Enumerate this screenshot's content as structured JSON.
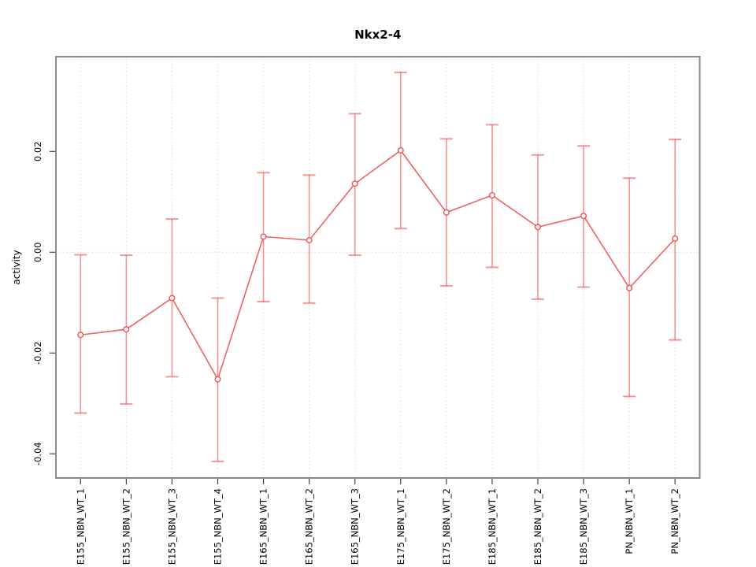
{
  "figure": {
    "background": "#ffffff"
  },
  "chart_data": {
    "type": "line",
    "title": "Nkx2-4",
    "xlabel": "",
    "ylabel": "activity",
    "legend_position": "none",
    "grid": {
      "vertical_dotted": true,
      "zero_line_dotted": true
    },
    "marker": "open-circle",
    "categories": [
      "E155_NBN_WT_1",
      "E155_NBN_WT_2",
      "E155_NBN_WT_3",
      "E155_NBN_WT_4",
      "E165_NBN_WT_1",
      "E165_NBN_WT_2",
      "E165_NBN_WT_3",
      "E175_NBN_WT_1",
      "E175_NBN_WT_2",
      "E185_NBN_WT_1",
      "E185_NBN_WT_2",
      "E185_NBN_WT_3",
      "PN_NBN_WT_1",
      "PN_NBN_WT_2"
    ],
    "series": [
      {
        "name": "activity",
        "values": [
          -0.0164,
          -0.0153,
          -0.0091,
          -0.0252,
          0.0031,
          0.0024,
          0.0136,
          0.0202,
          0.0079,
          0.0113,
          0.005,
          0.0072,
          -0.0071,
          0.0027
        ],
        "upper": [
          -0.0005,
          -0.0006,
          0.0066,
          -0.0091,
          0.0158,
          0.0153,
          0.0275,
          0.0357,
          0.0225,
          0.0253,
          0.0193,
          0.0211,
          0.0147,
          0.0224
        ],
        "lower": [
          -0.0319,
          -0.0301,
          -0.0247,
          -0.0415,
          -0.0098,
          -0.0101,
          -0.0006,
          0.0047,
          -0.0067,
          -0.003,
          -0.0093,
          -0.0069,
          -0.0286,
          -0.0174
        ]
      }
    ],
    "yticks": [
      0.02,
      0,
      -0.02,
      -0.04
    ],
    "ytick_labels": [
      "0.02",
      "0.00",
      "-0.02",
      "-0.04"
    ],
    "ylim": [
      -0.0448,
      0.0388
    ],
    "colors": {
      "series_line": "#f15050",
      "marker_stroke": "#f15050",
      "marker_fill": "#ffffff",
      "error_bar": "rgba(241,80,80,0.60)",
      "gridline": "#d9d9d9",
      "zero_line": "#d9d9d9",
      "plot_border": "#8a8a8a",
      "tick": "#404040",
      "text": "#000000"
    }
  }
}
